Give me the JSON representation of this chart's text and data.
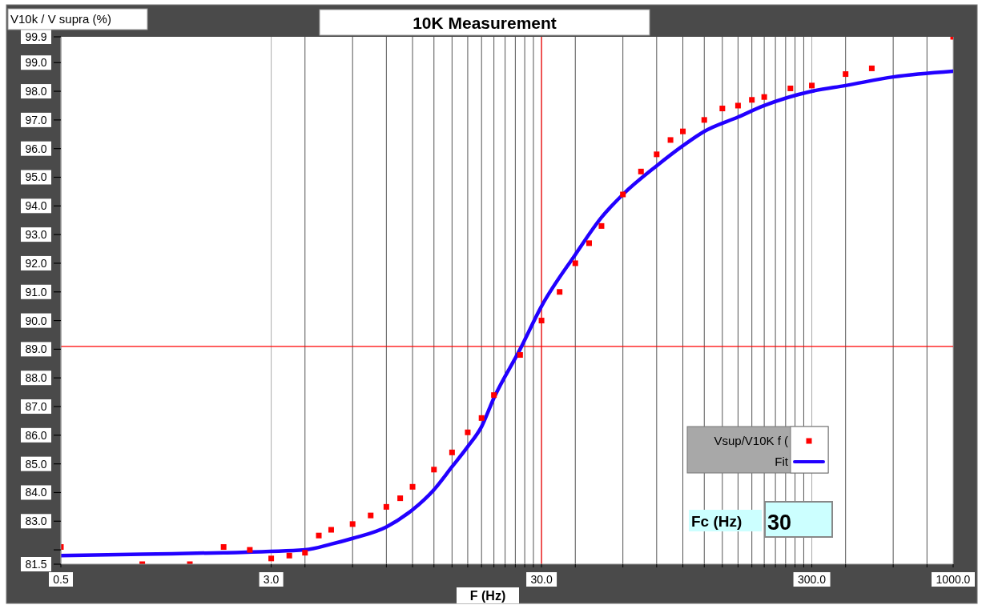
{
  "chart_data": {
    "type": "scatter",
    "title": "10K Measurement",
    "xlabel": "F (Hz)",
    "ylabel": "V10k / V supra (%)",
    "log": "x",
    "grid": "x",
    "legend": "bottom right",
    "xlim": [
      0.5,
      1000
    ],
    "ylim": [
      81.5,
      99.9
    ],
    "xticks": [
      {
        "value": 0.5,
        "label": "0.5"
      },
      {
        "value": 3,
        "label": "3.0"
      },
      {
        "value": 4,
        "label": null
      },
      {
        "value": 6,
        "label": null
      },
      {
        "value": 8,
        "label": null
      },
      {
        "value": 10,
        "label": null
      },
      {
        "value": 12,
        "label": null
      },
      {
        "value": 14,
        "label": null
      },
      {
        "value": 16,
        "label": null
      },
      {
        "value": 18,
        "label": null
      },
      {
        "value": 20,
        "label": null
      },
      {
        "value": 22,
        "label": null
      },
      {
        "value": 24,
        "label": null
      },
      {
        "value": 26,
        "label": null
      },
      {
        "value": 28,
        "label": null
      },
      {
        "value": 30,
        "label": "30.0"
      },
      {
        "value": 40,
        "label": null
      },
      {
        "value": 60,
        "label": null
      },
      {
        "value": 80,
        "label": null
      },
      {
        "value": 100,
        "label": null
      },
      {
        "value": 120,
        "label": null
      },
      {
        "value": 140,
        "label": null
      },
      {
        "value": 160,
        "label": null
      },
      {
        "value": 180,
        "label": null
      },
      {
        "value": 200,
        "label": null
      },
      {
        "value": 220,
        "label": null
      },
      {
        "value": 240,
        "label": null
      },
      {
        "value": 260,
        "label": null
      },
      {
        "value": 280,
        "label": null
      },
      {
        "value": 300,
        "label": "300.0"
      },
      {
        "value": 400,
        "label": null
      },
      {
        "value": 600,
        "label": null
      },
      {
        "value": 800,
        "label": null
      },
      {
        "value": 1000,
        "label": "1000.0"
      }
    ],
    "yticks": [
      {
        "value": 81.5,
        "label": "81.5"
      },
      {
        "value": 82,
        "label": null
      },
      {
        "value": 83,
        "label": "83.0"
      },
      {
        "value": 84,
        "label": "84.0"
      },
      {
        "value": 85,
        "label": "85.0"
      },
      {
        "value": 86,
        "label": "86.0"
      },
      {
        "value": 87,
        "label": "87.0"
      },
      {
        "value": 88,
        "label": "88.0"
      },
      {
        "value": 89,
        "label": "89.0"
      },
      {
        "value": 90,
        "label": "90.0"
      },
      {
        "value": 91,
        "label": "91.0"
      },
      {
        "value": 92,
        "label": "92.0"
      },
      {
        "value": 93,
        "label": "93.0"
      },
      {
        "value": 94,
        "label": "94.0"
      },
      {
        "value": 95,
        "label": "95.0"
      },
      {
        "value": 96,
        "label": "96.0"
      },
      {
        "value": 97,
        "label": "97.0"
      },
      {
        "value": 98,
        "label": "98.0"
      },
      {
        "value": 99,
        "label": "99.0"
      },
      {
        "value": 99.9,
        "label": "99.9"
      }
    ],
    "ref_lines": [
      {
        "axis": "x",
        "value": 30,
        "color": "#ff0000"
      },
      {
        "axis": "y",
        "value": 89.1,
        "color": "#ff0000"
      }
    ],
    "annotations": [
      "Fc (Hz)",
      "30"
    ],
    "series": [
      {
        "name": "Vsup/V10K f (",
        "marker": "square",
        "color": "#ff0000",
        "x": [
          0.5,
          1,
          1.5,
          2,
          2.5,
          3,
          3.5,
          4,
          4.5,
          5,
          6,
          7,
          8,
          9,
          10,
          12,
          14,
          16,
          18,
          20,
          25,
          30,
          35,
          40,
          45,
          50,
          60,
          70,
          80,
          90,
          100,
          120,
          140,
          160,
          180,
          200,
          250,
          300,
          400,
          500,
          1000
        ],
        "values": [
          82.1,
          81.5,
          81.5,
          82.1,
          82.0,
          81.7,
          81.8,
          81.9,
          82.5,
          82.7,
          82.9,
          83.2,
          83.5,
          83.8,
          84.2,
          84.8,
          85.4,
          86.1,
          86.6,
          87.4,
          88.8,
          90.0,
          91.0,
          92.0,
          92.7,
          93.3,
          94.4,
          95.2,
          95.8,
          96.3,
          96.6,
          97.0,
          97.4,
          97.5,
          97.7,
          97.8,
          98.1,
          98.2,
          98.6,
          98.8,
          99.9
        ]
      },
      {
        "name": "Fit",
        "type": "line",
        "color": "#2200ff",
        "x": [
          0.5,
          1,
          2,
          4,
          5,
          6,
          8,
          10,
          12,
          14,
          16,
          18,
          20,
          25,
          30,
          40,
          50,
          60,
          80,
          100,
          120,
          160,
          200,
          300,
          400,
          600,
          1000
        ],
        "values": [
          81.8,
          81.85,
          81.9,
          82.0,
          82.2,
          82.4,
          82.8,
          83.4,
          84.1,
          84.9,
          85.6,
          86.3,
          87.3,
          89.0,
          90.5,
          92.3,
          93.6,
          94.4,
          95.4,
          96.1,
          96.6,
          97.1,
          97.5,
          98.0,
          98.2,
          98.5,
          98.7
        ]
      }
    ]
  }
}
